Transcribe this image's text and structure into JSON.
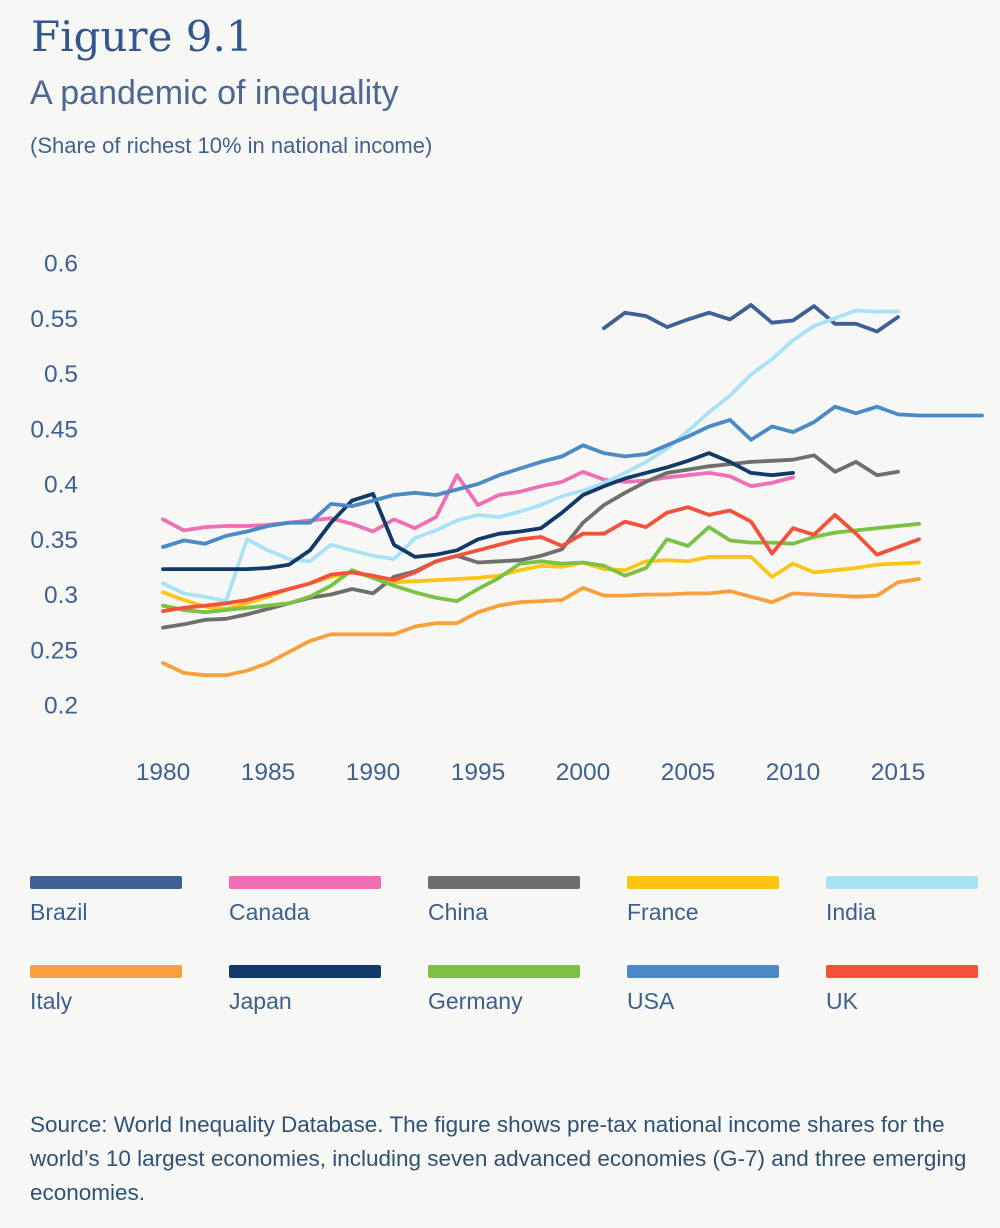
{
  "header": {
    "figure_label": "Figure 9.1",
    "title": "A pandemic of inequality",
    "subtitle": "(Share of richest 10% in national income)"
  },
  "chart_data": {
    "type": "line",
    "title": "A pandemic of inequality",
    "subtitle": "(Share of richest 10% in national income)",
    "xlabel": "",
    "ylabel": "",
    "grid": false,
    "legend_position": "bottom",
    "xlim": [
      1978,
      2020
    ],
    "ylim": [
      0.2,
      0.6
    ],
    "x_ticks": [
      "1980",
      "1985",
      "1990",
      "1995",
      "2000",
      "2005",
      "2010",
      "2015"
    ],
    "y_ticks": [
      "0.6",
      "0.55",
      "0.5",
      "0.45",
      "0.4",
      "0.35",
      "0.3",
      "0.25",
      "0.2"
    ],
    "tick_color": "#3e618f",
    "series": [
      {
        "name": "Brazil",
        "color": "#3e6094",
        "start_year": 2001,
        "values": [
          0.541,
          0.555,
          0.552,
          0.542,
          0.549,
          0.555,
          0.549,
          0.562,
          0.546,
          0.548,
          0.561,
          0.545,
          0.545,
          0.538,
          0.551
        ]
      },
      {
        "name": "Canada",
        "color": "#ef6fb4",
        "start_year": 1980,
        "values": [
          0.368,
          0.358,
          0.361,
          0.362,
          0.362,
          0.363,
          0.365,
          0.367,
          0.369,
          0.364,
          0.357,
          0.368,
          0.36,
          0.37,
          0.408,
          0.381,
          0.39,
          0.393,
          0.398,
          0.402,
          0.411,
          0.404,
          0.402,
          0.403,
          0.406,
          0.408,
          0.41,
          0.407,
          0.398,
          0.401,
          0.406
        ]
      },
      {
        "name": "China",
        "color": "#6e6e6c",
        "start_year": 1980,
        "values": [
          0.27,
          0.273,
          0.277,
          0.278,
          0.282,
          0.287,
          0.292,
          0.297,
          0.3,
          0.305,
          0.301,
          0.316,
          0.321,
          0.33,
          0.335,
          0.329,
          0.33,
          0.331,
          0.335,
          0.341,
          0.365,
          0.381,
          0.392,
          0.402,
          0.41,
          0.413,
          0.416,
          0.418,
          0.42,
          0.421,
          0.422,
          0.426,
          0.411,
          0.42,
          0.408,
          0.411
        ]
      },
      {
        "name": "France",
        "color": "#fcc515",
        "start_year": 1980,
        "values": [
          0.302,
          0.295,
          0.289,
          0.287,
          0.292,
          0.298,
          0.305,
          0.31,
          0.316,
          0.32,
          0.316,
          0.311,
          0.312,
          0.313,
          0.314,
          0.315,
          0.317,
          0.322,
          0.326,
          0.325,
          0.329,
          0.323,
          0.322,
          0.33,
          0.331,
          0.33,
          0.334,
          0.334,
          0.334,
          0.316,
          0.328,
          0.32,
          0.322,
          0.324,
          0.327,
          0.328,
          0.329
        ]
      },
      {
        "name": "India",
        "color": "#a9e2f6",
        "start_year": 1980,
        "values": [
          0.31,
          0.301,
          0.298,
          0.294,
          0.35,
          0.34,
          0.332,
          0.33,
          0.345,
          0.34,
          0.335,
          0.332,
          0.351,
          0.358,
          0.367,
          0.372,
          0.37,
          0.375,
          0.381,
          0.389,
          0.394,
          0.401,
          0.41,
          0.42,
          0.432,
          0.448,
          0.465,
          0.48,
          0.499,
          0.513,
          0.53,
          0.543,
          0.55,
          0.557,
          0.556,
          0.556
        ]
      },
      {
        "name": "Italy",
        "color": "#f7a03c",
        "start_year": 1980,
        "values": [
          0.238,
          0.229,
          0.227,
          0.227,
          0.231,
          0.238,
          0.248,
          0.258,
          0.264,
          0.264,
          0.264,
          0.264,
          0.271,
          0.274,
          0.274,
          0.284,
          0.29,
          0.293,
          0.294,
          0.295,
          0.306,
          0.299,
          0.299,
          0.3,
          0.3,
          0.301,
          0.301,
          0.303,
          0.298,
          0.293,
          0.301,
          0.3,
          0.299,
          0.298,
          0.299,
          0.311,
          0.314
        ]
      },
      {
        "name": "Japan",
        "color": "#113a68",
        "start_year": 1980,
        "values": [
          0.323,
          0.323,
          0.323,
          0.323,
          0.323,
          0.324,
          0.327,
          0.34,
          0.365,
          0.385,
          0.391,
          0.345,
          0.334,
          0.336,
          0.34,
          0.35,
          0.355,
          0.357,
          0.36,
          0.374,
          0.39,
          0.398,
          0.405,
          0.41,
          0.415,
          0.421,
          0.428,
          0.42,
          0.41,
          0.408,
          0.41
        ]
      },
      {
        "name": "Germany",
        "color": "#7bc143",
        "start_year": 1980,
        "values": [
          0.29,
          0.286,
          0.284,
          0.286,
          0.288,
          0.29,
          0.292,
          0.298,
          0.308,
          0.322,
          0.315,
          0.308,
          0.302,
          0.297,
          0.294,
          0.305,
          0.315,
          0.328,
          0.33,
          0.328,
          0.329,
          0.326,
          0.317,
          0.324,
          0.35,
          0.344,
          0.361,
          0.349,
          0.347,
          0.347,
          0.346,
          0.352,
          0.356,
          0.358,
          0.36,
          0.362,
          0.364
        ]
      },
      {
        "name": "USA",
        "color": "#4b8ac6",
        "start_year": 1980,
        "values": [
          0.343,
          0.349,
          0.346,
          0.353,
          0.357,
          0.362,
          0.365,
          0.365,
          0.382,
          0.38,
          0.385,
          0.39,
          0.392,
          0.39,
          0.395,
          0.4,
          0.408,
          0.414,
          0.42,
          0.425,
          0.435,
          0.428,
          0.425,
          0.427,
          0.435,
          0.443,
          0.452,
          0.458,
          0.44,
          0.452,
          0.447,
          0.456,
          0.47,
          0.464,
          0.47,
          0.463,
          0.462,
          0.462,
          0.462,
          0.462
        ]
      },
      {
        "name": "UK",
        "color": "#f2513b",
        "start_year": 1980,
        "values": [
          0.285,
          0.288,
          0.29,
          0.292,
          0.295,
          0.3,
          0.305,
          0.31,
          0.318,
          0.32,
          0.317,
          0.313,
          0.32,
          0.33,
          0.335,
          0.34,
          0.345,
          0.35,
          0.352,
          0.344,
          0.355,
          0.355,
          0.366,
          0.361,
          0.374,
          0.379,
          0.372,
          0.376,
          0.366,
          0.337,
          0.36,
          0.354,
          0.372,
          0.355,
          0.336,
          0.343,
          0.35
        ]
      }
    ]
  },
  "legend": {
    "items": [
      {
        "label": "Brazil",
        "color": "#3e6094"
      },
      {
        "label": "Canada",
        "color": "#ef6fb4"
      },
      {
        "label": "China",
        "color": "#6e6e6c"
      },
      {
        "label": "France",
        "color": "#fcc515"
      },
      {
        "label": "India",
        "color": "#a9e2f6"
      },
      {
        "label": "Italy",
        "color": "#f7a03c"
      },
      {
        "label": "Japan",
        "color": "#113a68"
      },
      {
        "label": "Germany",
        "color": "#7bc143"
      },
      {
        "label": "USA",
        "color": "#4b8ac6"
      },
      {
        "label": "UK",
        "color": "#f2513b"
      }
    ]
  },
  "source": {
    "text": "Source: World Inequality Database. The figure shows pre-tax national income shares for the world’s 10 largest economies, including seven advanced economies (G-7) and three emerging economies."
  }
}
